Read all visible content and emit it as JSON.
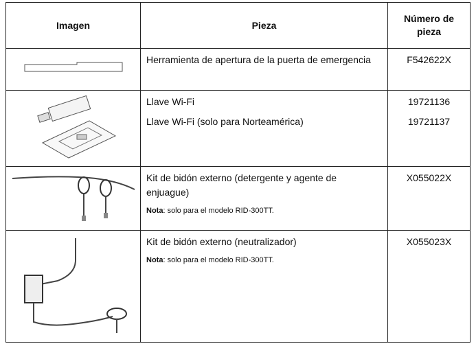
{
  "table": {
    "header": [
      "Imagen",
      "Pieza",
      "Número de pieza"
    ],
    "rows": [
      {
        "pieces": [
          "Herramienta de apertura de la puerta de emergencia"
        ],
        "numbers": [
          "F542622X"
        ]
      },
      {
        "pieces": [
          "Llave Wi-Fi",
          "Llave Wi-Fi (solo para Norteamérica)"
        ],
        "numbers": [
          "19721136",
          "19721137"
        ]
      },
      {
        "pieces": [
          "Kit de bidón externo (detergente y agente de enjuague)"
        ],
        "numbers": [
          "X055022X"
        ],
        "note": {
          "label": "Nota",
          "text": ": solo para el modelo RID-300TT."
        }
      },
      {
        "pieces": [
          "Kit de bidón externo (neutralizador)"
        ],
        "numbers": [
          "X055023X"
        ],
        "note": {
          "label": "Nota",
          "text": ": solo para el modelo RID-300TT."
        }
      }
    ]
  }
}
